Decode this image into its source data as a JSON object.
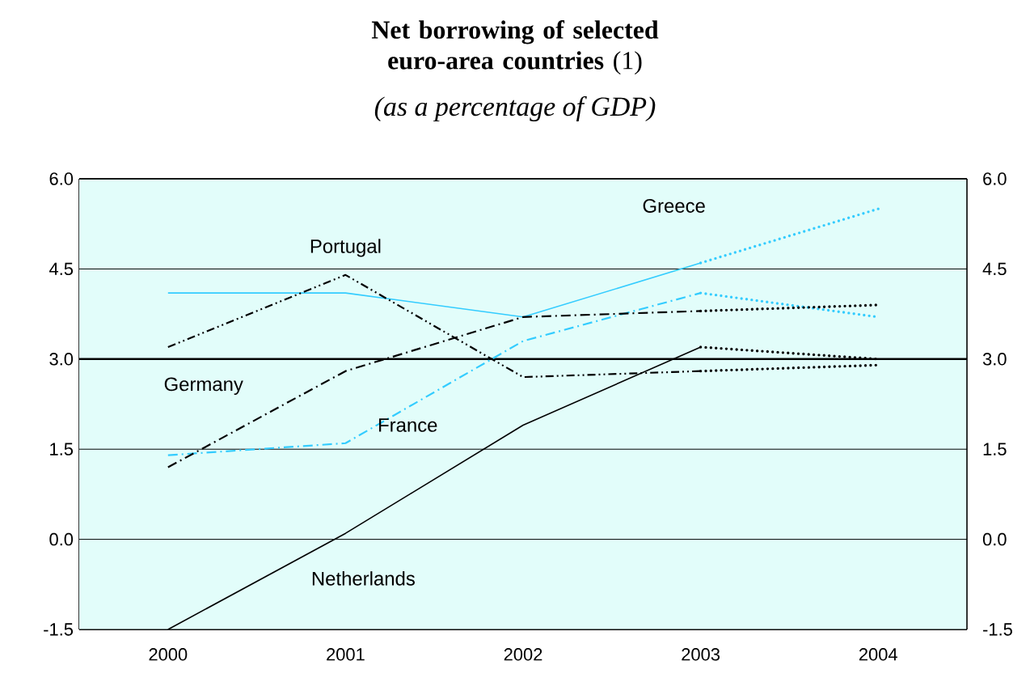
{
  "chart_data": {
    "type": "line",
    "title": "**Net borrowing of selected euro-area countries** (1)",
    "subtitle": "(as a percentage of GDP)",
    "categories": [
      "2000",
      "2001",
      "2002",
      "2003",
      "2004"
    ],
    "series": [
      {
        "name": "Greece",
        "color": "#33ccff",
        "line_style": "solid",
        "values": [
          4.1,
          4.1,
          3.7,
          4.6,
          null
        ]
      },
      {
        "color": "#33ccff",
        "line_style": "dotted",
        "values": [
          null,
          null,
          null,
          4.6,
          5.5
        ]
      },
      {
        "name": "France",
        "color": "#33ccff",
        "line_style": "dashdot",
        "values": [
          1.4,
          1.6,
          3.3,
          4.1,
          null
        ]
      },
      {
        "color": "#33ccff",
        "line_style": "dotted",
        "values": [
          null,
          null,
          null,
          4.1,
          3.7
        ]
      },
      {
        "name": "Germany",
        "color": "#000000",
        "line_style": "dashdot",
        "values": [
          1.2,
          2.8,
          3.7,
          3.8,
          null
        ]
      },
      {
        "color": "#000000",
        "line_style": "dotted",
        "values": [
          null,
          null,
          null,
          3.8,
          3.9
        ]
      },
      {
        "name": "Portugal",
        "color": "#000000",
        "line_style": "dashdotdot",
        "values": [
          3.2,
          4.4,
          2.7,
          2.8,
          null
        ]
      },
      {
        "color": "#000000",
        "line_style": "dotted",
        "values": [
          null,
          null,
          null,
          2.8,
          2.9
        ]
      },
      {
        "name": "Netherlands",
        "color": "#000000",
        "line_style": "solid",
        "values": [
          -1.5,
          0.1,
          1.9,
          3.2,
          null
        ]
      },
      {
        "color": "#000000",
        "line_style": "dotted",
        "values": [
          null,
          null,
          null,
          3.2,
          3.0
        ]
      }
    ],
    "ylim": [
      -1.5,
      6.0
    ],
    "yticks": [
      {
        "value": -1.5,
        "label": "-1.5"
      },
      {
        "value": 0,
        "label": "0.0"
      },
      {
        "value": 1.5,
        "label": "1.5"
      },
      {
        "value": 3,
        "label": "3.0"
      },
      {
        "value": 4.5,
        "label": "4.5"
      },
      {
        "value": 6,
        "label": "6.0"
      }
    ],
    "y2lim": [
      -1.5,
      6.0
    ],
    "y2ticks": [
      {
        "value": -1.5,
        "label": "-1.5"
      },
      {
        "value": 0,
        "label": "0.0"
      },
      {
        "value": 1.5,
        "label": "1.5"
      },
      {
        "value": 3,
        "label": "3.0"
      },
      {
        "value": 4.5,
        "label": "4.5"
      },
      {
        "value": 6,
        "label": "6.0"
      }
    ],
    "ref_lines": [
      {
        "axis": "y",
        "value": 3,
        "color": "#000000"
      }
    ],
    "grid": "y",
    "marker": "none"
  }
}
